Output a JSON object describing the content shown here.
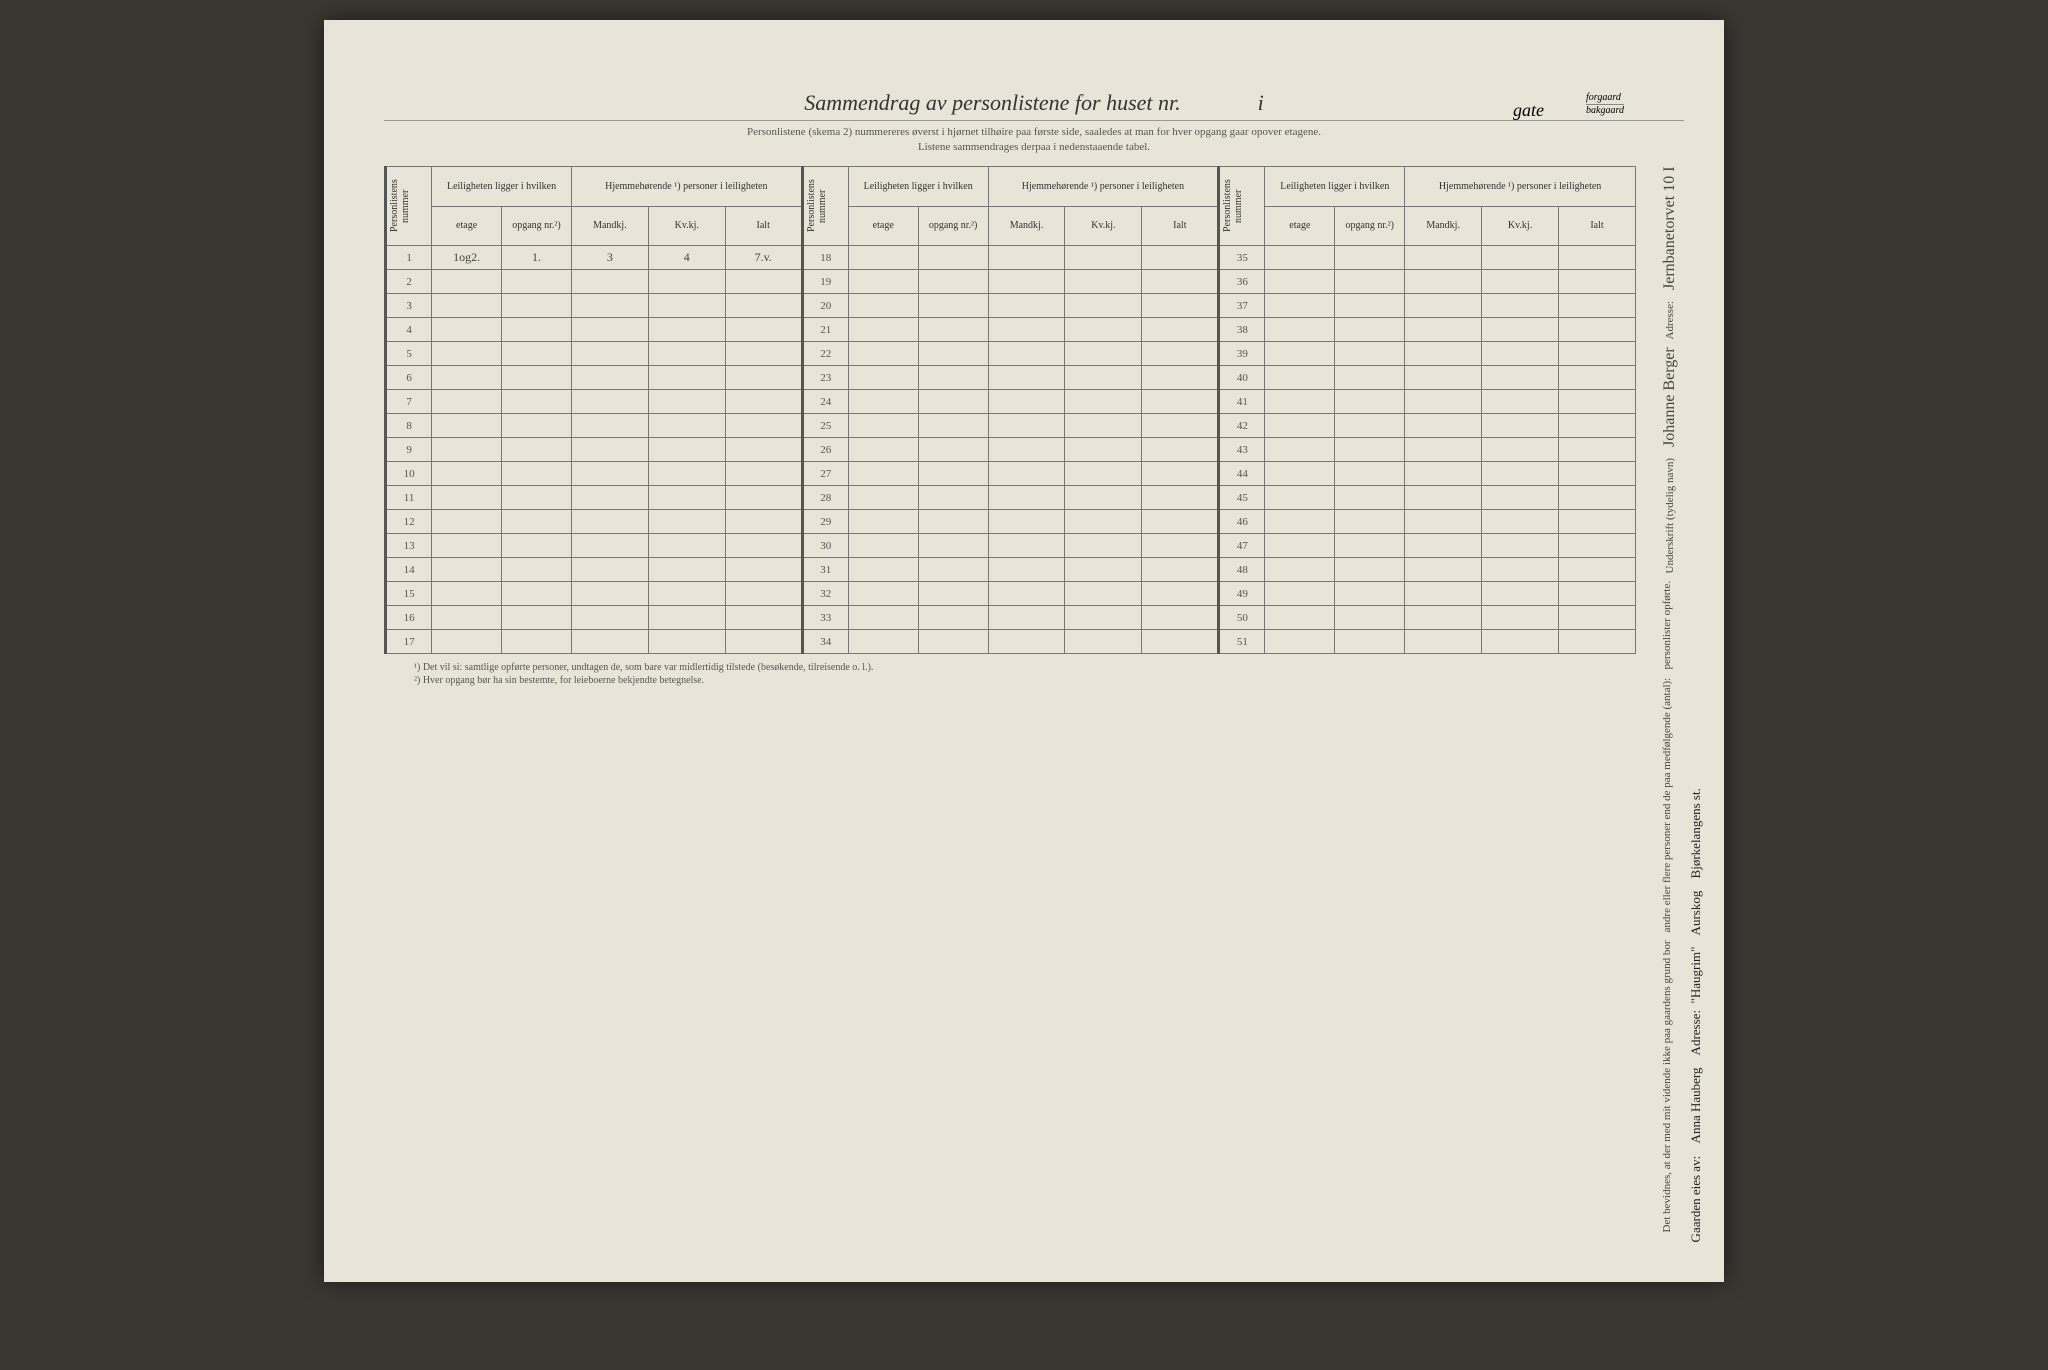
{
  "title": "Sammendrag av personlistene for huset nr.",
  "title_mid": "i",
  "gate_label": "gate",
  "gate_sub1": "forgaard",
  "gate_sub2": "bakgaard",
  "subtitle_line1": "Personlistene (skema 2) nummereres øverst i hjørnet tilhøire paa første side, saaledes at man for hver opgang gaar opover etagene.",
  "subtitle_line2": "Listene sammendrages derpaa i nedenstaaende tabel.",
  "headers": {
    "personlistens_nummer": "Personlistens nummer",
    "leiligheten_group": "Leiligheten ligger i hvilken",
    "hjemmehorende_group": "Hjemmehørende ¹) personer i leiligheten",
    "etage": "etage",
    "opgang": "opgang nr.²)",
    "mandkj": "Mandkj.",
    "kvkj": "Kv.kj.",
    "ialt": "Ialt"
  },
  "rows1": {
    "r1": {
      "num": "1",
      "etage": "1og2.",
      "opgang": "1.",
      "mandkj": "3",
      "kvkj": "4",
      "ialt": "7.v."
    },
    "r2": {
      "num": "2",
      "etage": "",
      "opgang": "",
      "mandkj": "",
      "kvkj": "",
      "ialt": ""
    },
    "r3": {
      "num": "3"
    },
    "r4": {
      "num": "4"
    },
    "r5": {
      "num": "5"
    },
    "r6": {
      "num": "6"
    },
    "r7": {
      "num": "7"
    },
    "r8": {
      "num": "8"
    },
    "r9": {
      "num": "9"
    },
    "r10": {
      "num": "10"
    },
    "r11": {
      "num": "11"
    },
    "r12": {
      "num": "12"
    },
    "r13": {
      "num": "13"
    },
    "r14": {
      "num": "14"
    },
    "r15": {
      "num": "15"
    },
    "r16": {
      "num": "16"
    },
    "r17": {
      "num": "17"
    }
  },
  "rows2": {
    "r18": {
      "num": "18"
    },
    "r19": {
      "num": "19"
    },
    "r20": {
      "num": "20"
    },
    "r21": {
      "num": "21"
    },
    "r22": {
      "num": "22"
    },
    "r23": {
      "num": "23"
    },
    "r24": {
      "num": "24"
    },
    "r25": {
      "num": "25"
    },
    "r26": {
      "num": "26"
    },
    "r27": {
      "num": "27"
    },
    "r28": {
      "num": "28"
    },
    "r29": {
      "num": "29"
    },
    "r30": {
      "num": "30"
    },
    "r31": {
      "num": "31"
    },
    "r32": {
      "num": "32"
    },
    "r33": {
      "num": "33"
    },
    "r34": {
      "num": "34"
    }
  },
  "rows3": {
    "r35": {
      "num": "35"
    },
    "r36": {
      "num": "36"
    },
    "r37": {
      "num": "37"
    },
    "r38": {
      "num": "38"
    },
    "r39": {
      "num": "39"
    },
    "r40": {
      "num": "40"
    },
    "r41": {
      "num": "41"
    },
    "r42": {
      "num": "42"
    },
    "r43": {
      "num": "43"
    },
    "r44": {
      "num": "44"
    },
    "r45": {
      "num": "45"
    },
    "r46": {
      "num": "46"
    },
    "r47": {
      "num": "47"
    },
    "r48": {
      "num": "48"
    },
    "r49": {
      "num": "49"
    },
    "r50": {
      "num": "50"
    },
    "r51": {
      "num": "51"
    }
  },
  "footnote1": "¹) Det vil si: samtlige opførte personer, undtagen de, som bare var midlertidig tilstede (besøkende, tilreisende o. l.).",
  "footnote2": "²) Hver opgang bør ha sin bestemte, for leieboerne bekjendte betegnelse.",
  "side_right": {
    "line1": "Det bevidnes, at der med mit vidende ikke paa gaardens grund bor",
    "line2": "andre eller flere personer end de paa medfølgende (antal):",
    "line3": "personlister opførte.",
    "underskrift_label": "Underskrift (tydelig navn)",
    "signature": "Johanne Berger",
    "adresse_label": "Adresse:",
    "adresse": "Jernbanetorvet 10 I"
  },
  "bottom_right": {
    "gaarden_label": "Gaarden eies av:",
    "owner1": "Anna Hauberg",
    "owner2": "\"Haugrim\"",
    "adresse_label": "Adresse:",
    "owner3": "Aurskog",
    "owner4": "Bjørkelangens st."
  }
}
